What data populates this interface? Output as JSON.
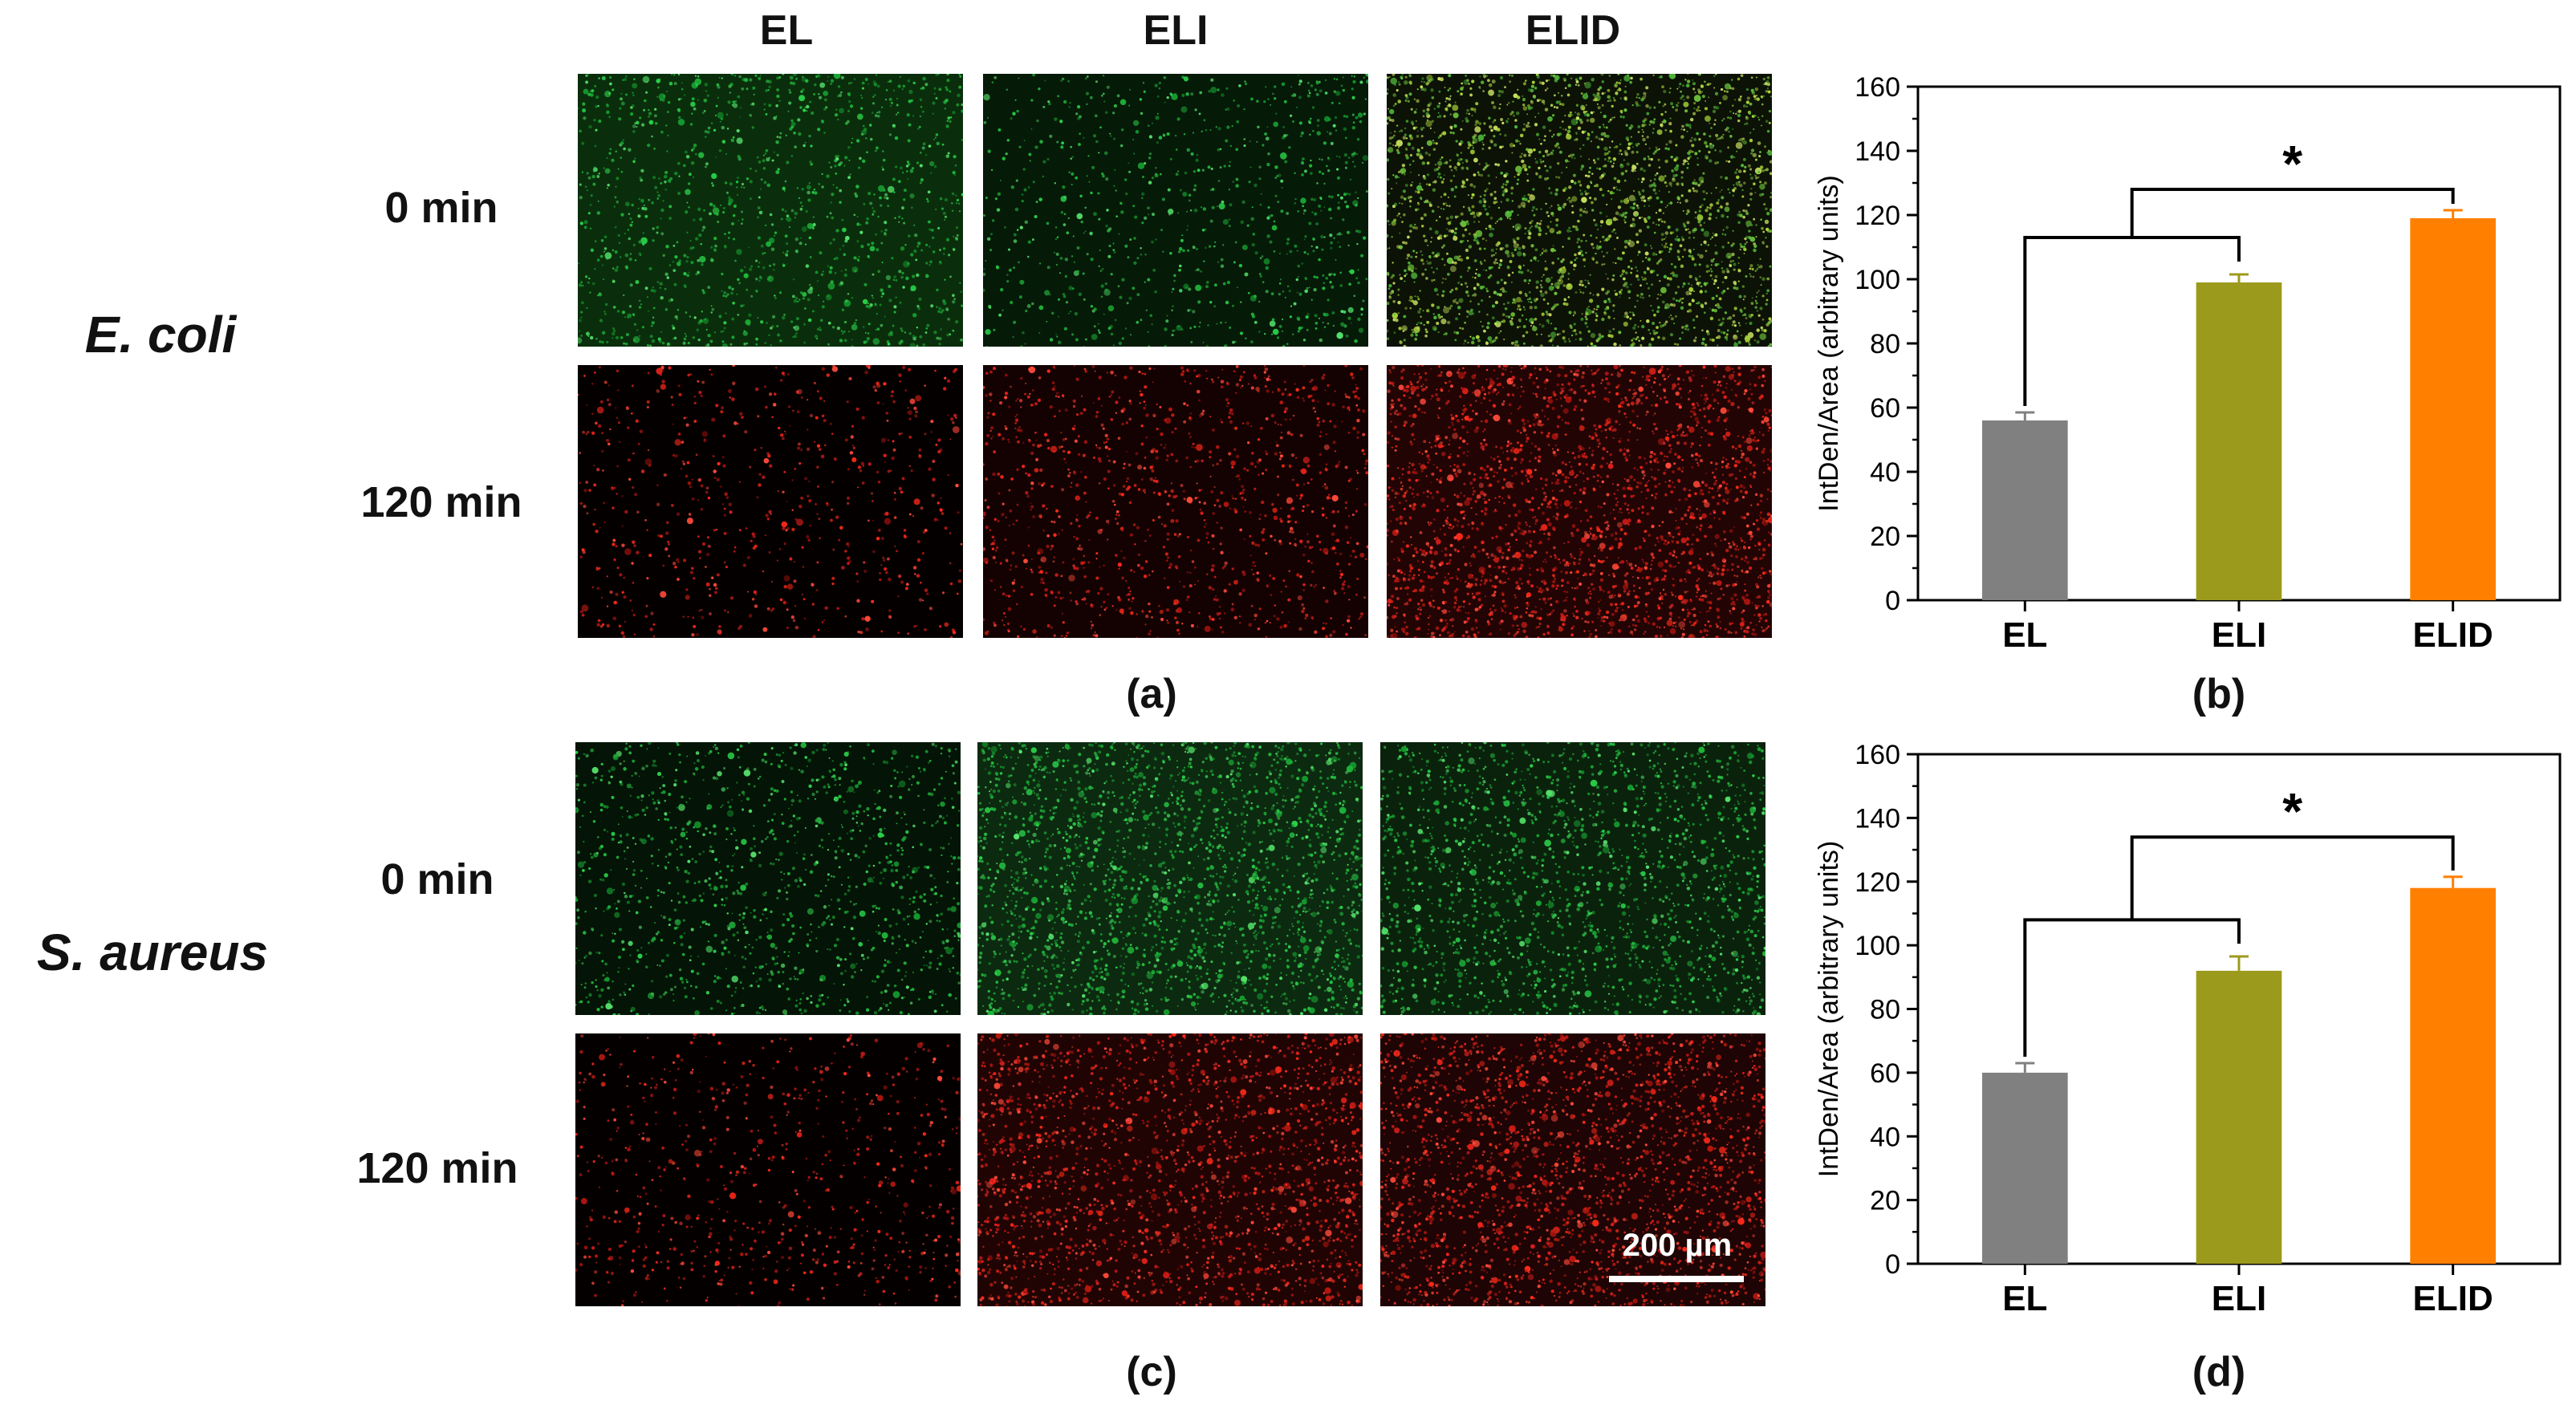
{
  "figure": {
    "row_a": {
      "organism": "E. coli",
      "columns": [
        "EL",
        "ELI",
        "ELID"
      ],
      "times": [
        "0 min",
        "120 min"
      ],
      "panel_label": "(a)"
    },
    "row_c": {
      "organism": "S. aureus",
      "times": [
        "0 min",
        "120 min"
      ],
      "panel_label": "(c)",
      "scale_bar_label": "200 µm"
    },
    "panel_b_label": "(b)",
    "panel_d_label": "(d)",
    "colors": {
      "live_stain": "#22c43a",
      "dead_stain": "#e52a20",
      "EL_bar": "#808080",
      "ELI_bar": "#9c9a1c",
      "ELID_bar": "#ff7f00"
    }
  },
  "chart_data": [
    {
      "id": "b",
      "type": "bar",
      "categories": [
        "EL",
        "ELI",
        "ELID"
      ],
      "values": [
        56,
        99,
        119
      ],
      "errors": [
        2.5,
        2.5,
        2.5
      ],
      "bar_colors": [
        "#808080",
        "#9c9a1c",
        "#ff7f00"
      ],
      "ylabel": "IntDen/Area (arbitrary units)",
      "xlabel": "",
      "ylim": [
        0,
        160
      ],
      "yticks": [
        "0",
        "20",
        "40",
        "60",
        "80",
        "100",
        "120",
        "140",
        "160"
      ],
      "annotation": "*",
      "panel_label": "(b)"
    },
    {
      "id": "d",
      "type": "bar",
      "categories": [
        "EL",
        "ELI",
        "ELID"
      ],
      "values": [
        60,
        92,
        118
      ],
      "errors": [
        3,
        4.5,
        3.5
      ],
      "bar_colors": [
        "#808080",
        "#9c9a1c",
        "#ff7f00"
      ],
      "ylabel": "IntDen/Area (arbitrary units)",
      "xlabel": "",
      "ylim": [
        0,
        160
      ],
      "yticks": [
        "0",
        "20",
        "40",
        "60",
        "80",
        "100",
        "120",
        "140",
        "160"
      ],
      "annotation": "*",
      "panel_label": "(d)"
    }
  ]
}
